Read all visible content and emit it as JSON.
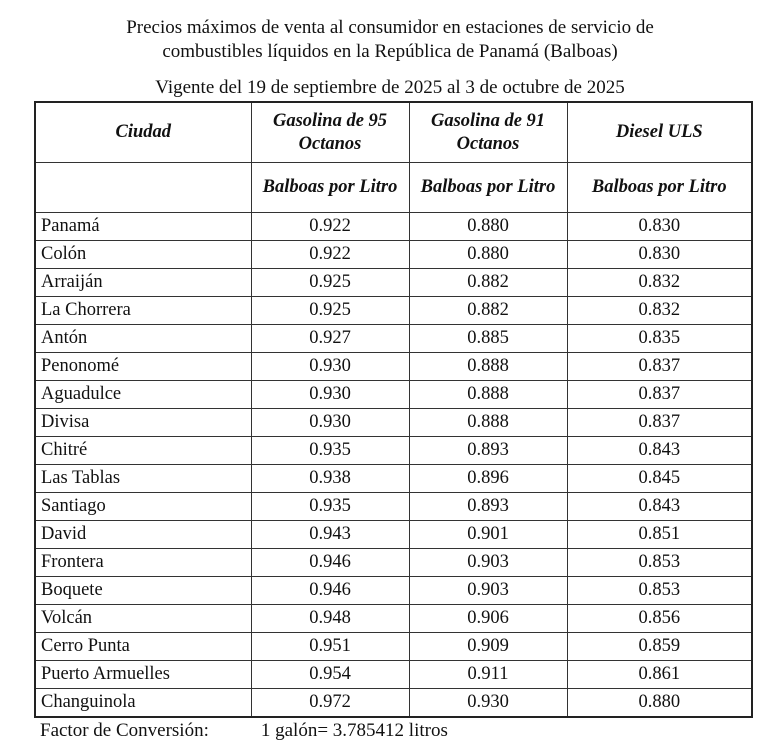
{
  "title_line1": "Precios máximos de venta al consumidor en estaciones de servicio de",
  "title_line2": "combustibles líquidos en la República de Panamá (Balboas)",
  "validity": "Vigente del 19 de septiembre de 2025 al 3 de octubre de 2025",
  "headers": [
    "Ciudad",
    "Gasolina de 95 Octanos",
    "Gasolina de 91 Octanos",
    "Diesel ULS"
  ],
  "units": [
    "",
    "Balboas por Litro",
    "Balboas por Litro",
    "Balboas por Litro"
  ],
  "rows": [
    [
      "Panamá",
      "0.922",
      "0.880",
      "0.830"
    ],
    [
      "Colón",
      "0.922",
      "0.880",
      "0.830"
    ],
    [
      "Arraiján",
      "0.925",
      "0.882",
      "0.832"
    ],
    [
      "La Chorrera",
      "0.925",
      "0.882",
      "0.832"
    ],
    [
      "Antón",
      "0.927",
      "0.885",
      "0.835"
    ],
    [
      "Penonomé",
      "0.930",
      "0.888",
      "0.837"
    ],
    [
      "Aguadulce",
      "0.930",
      "0.888",
      "0.837"
    ],
    [
      "Divisa",
      "0.930",
      "0.888",
      "0.837"
    ],
    [
      "Chitré",
      "0.935",
      "0.893",
      "0.843"
    ],
    [
      "Las Tablas",
      "0.938",
      "0.896",
      "0.845"
    ],
    [
      "Santiago",
      "0.935",
      "0.893",
      "0.843"
    ],
    [
      "David",
      "0.943",
      "0.901",
      "0.851"
    ],
    [
      "Frontera",
      "0.946",
      "0.903",
      "0.853"
    ],
    [
      "Boquete",
      "0.946",
      "0.903",
      "0.853"
    ],
    [
      "Volcán",
      "0.948",
      "0.906",
      "0.856"
    ],
    [
      "Cerro Punta",
      "0.951",
      "0.909",
      "0.859"
    ],
    [
      "Puerto Armuelles",
      "0.954",
      "0.911",
      "0.861"
    ],
    [
      "Changuinola",
      "0.972",
      "0.930",
      "0.880"
    ]
  ],
  "footer": {
    "label": "Factor de Conversión:",
    "value": "1 galón= 3.785412 litros"
  }
}
